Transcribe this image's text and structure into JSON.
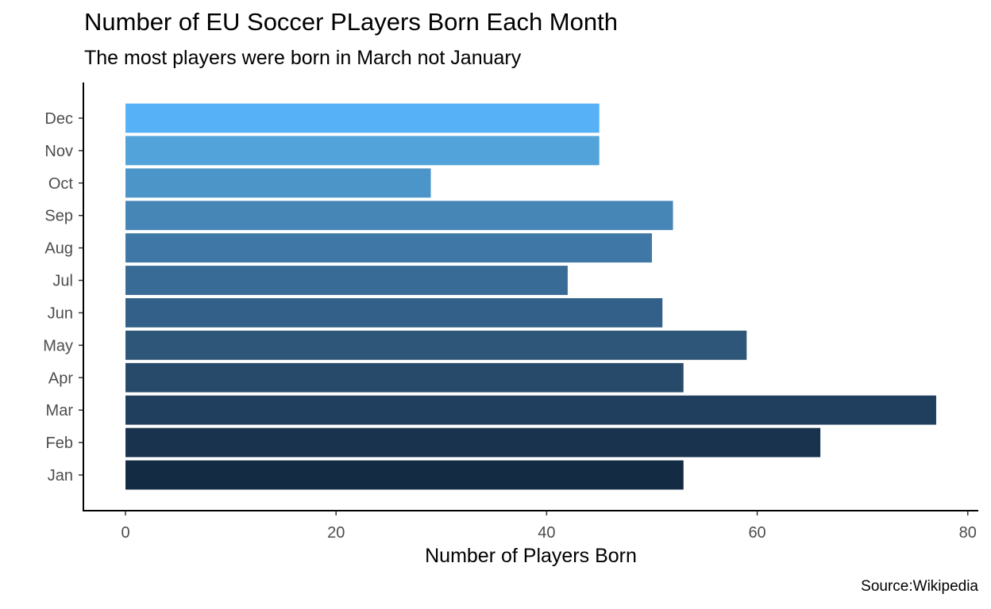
{
  "chart_data": {
    "type": "bar",
    "orientation": "horizontal",
    "title": "Number of EU Soccer PLayers Born Each Month",
    "subtitle": "The most players were born in March not January",
    "caption": "Source:Wikipedia",
    "xlabel": "Number of Players Born",
    "ylabel": "",
    "categories": [
      "Jan",
      "Feb",
      "Mar",
      "Apr",
      "May",
      "Jun",
      "Jul",
      "Aug",
      "Sep",
      "Oct",
      "Nov",
      "Dec"
    ],
    "values": [
      53,
      66,
      77,
      53,
      59,
      51,
      42,
      50,
      52,
      29,
      45,
      45
    ],
    "colors": [
      "#132b43",
      "#19334e",
      "#203f5e",
      "#274a6b",
      "#2d5679",
      "#336088",
      "#386b95",
      "#3f78a6",
      "#4586b7",
      "#4b95c8",
      "#51a3d9",
      "#56b1f7"
    ],
    "xlim": [
      -4,
      81
    ],
    "xticks": [
      0,
      20,
      40,
      60,
      80
    ],
    "grid": false,
    "legend": "none"
  }
}
